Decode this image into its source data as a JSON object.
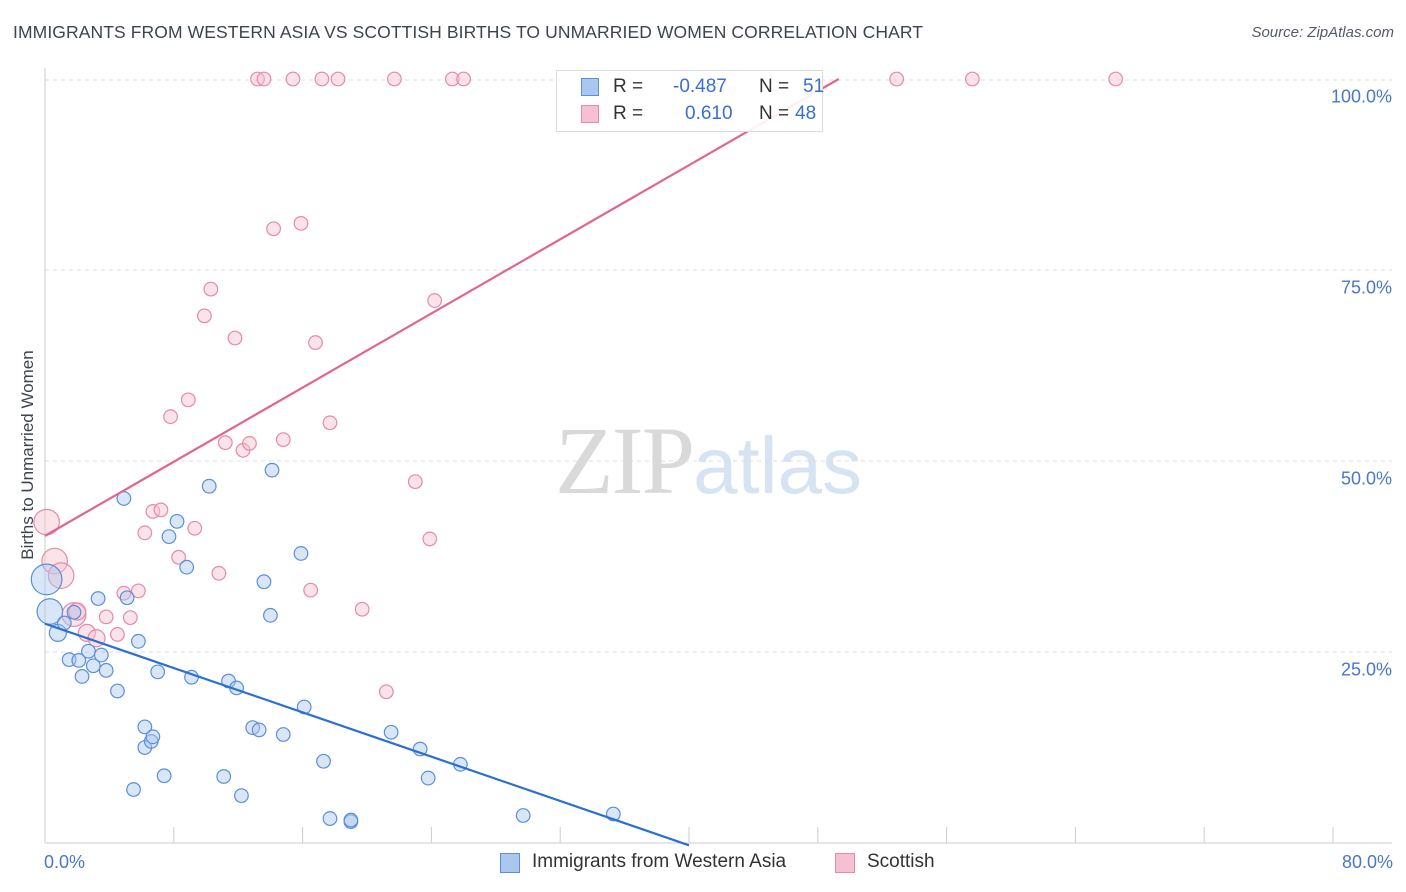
{
  "header": {
    "title": "IMMIGRANTS FROM WESTERN ASIA VS SCOTTISH BIRTHS TO UNMARRIED WOMEN CORRELATION CHART",
    "source": "Source: ZipAtlas.com"
  },
  "watermark": {
    "zip": "ZIP",
    "atlas": "atlas"
  },
  "legend": {
    "rows": [
      {
        "r_label": "R =",
        "r_value": "-0.487",
        "n_label": "N =",
        "n_value": "51"
      },
      {
        "r_label": "R =",
        "r_value": "0.610",
        "n_label": "N =",
        "n_value": "48"
      }
    ]
  },
  "bottom_legend": {
    "series1": "Immigrants from Western Asia",
    "series2": "Scottish"
  },
  "colors": {
    "blue_fill": "#aac7f0",
    "blue_stroke": "#5b8fd6",
    "blue_line": "#2b6fd0",
    "pink_fill": "#f6c0d1",
    "pink_stroke": "#e58aa8",
    "pink_line": "#e2658f",
    "tick_text": "#4a77c9"
  },
  "chart_data": {
    "type": "scatter",
    "title": "IMMIGRANTS FROM WESTERN ASIA VS SCOTTISH BIRTHS TO UNMARRIED WOMEN CORRELATION CHART",
    "xlabel": "",
    "ylabel": "Births to Unmarried Women",
    "xlim": [
      0,
      80
    ],
    "ylim": [
      0,
      100
    ],
    "x_tick_labels": [
      "0.0%",
      "80.0%"
    ],
    "y_tick_labels": [
      "100.0%",
      "75.0%",
      "50.0%",
      "25.0%"
    ],
    "y_tick_values": [
      100,
      75,
      50,
      25
    ],
    "grid": true,
    "series": [
      {
        "name": "Immigrants from Western Asia",
        "color": "blue",
        "r": -0.487,
        "n": 51,
        "trend": {
          "x0": 0,
          "y0": 28.7,
          "x1": 40,
          "y1": -0.3
        },
        "points": [
          [
            0.1,
            34.5,
            1.8
          ],
          [
            0.3,
            30.3,
            1.5
          ],
          [
            0.8,
            27.5,
            1.0
          ],
          [
            1.2,
            28.8,
            0.8
          ],
          [
            1.5,
            24.0,
            0.8
          ],
          [
            1.8,
            30.2,
            0.8
          ],
          [
            2.1,
            23.9,
            0.8
          ],
          [
            2.3,
            21.8,
            0.8
          ],
          [
            2.7,
            25.1,
            0.8
          ],
          [
            3.0,
            23.2,
            0.8
          ],
          [
            3.3,
            32.0,
            0.8
          ],
          [
            3.5,
            24.6,
            0.8
          ],
          [
            3.8,
            22.6,
            0.8
          ],
          [
            4.5,
            19.9,
            0.8
          ],
          [
            4.9,
            45.1,
            0.8
          ],
          [
            5.1,
            32.1,
            0.8
          ],
          [
            5.5,
            7.0,
            0.8
          ],
          [
            5.8,
            26.4,
            0.8
          ],
          [
            6.2,
            12.5,
            0.8
          ],
          [
            6.2,
            15.2,
            0.8
          ],
          [
            6.6,
            13.3,
            0.8
          ],
          [
            6.7,
            13.9,
            0.8
          ],
          [
            7.0,
            22.4,
            0.8
          ],
          [
            7.4,
            8.8,
            0.8
          ],
          [
            7.7,
            40.1,
            0.8
          ],
          [
            8.2,
            42.1,
            0.8
          ],
          [
            8.8,
            36.1,
            0.8
          ],
          [
            9.1,
            21.7,
            0.8
          ],
          [
            10.2,
            46.7,
            0.8
          ],
          [
            11.1,
            8.7,
            0.8
          ],
          [
            11.4,
            21.2,
            0.8
          ],
          [
            11.9,
            20.3,
            0.8
          ],
          [
            12.2,
            6.2,
            0.8
          ],
          [
            12.9,
            15.1,
            0.8
          ],
          [
            13.3,
            14.8,
            0.8
          ],
          [
            13.6,
            34.2,
            0.8
          ],
          [
            14.0,
            29.8,
            0.8
          ],
          [
            14.1,
            48.8,
            0.8
          ],
          [
            14.8,
            14.2,
            0.8
          ],
          [
            15.9,
            37.9,
            0.8
          ],
          [
            16.1,
            17.8,
            0.8
          ],
          [
            17.3,
            10.7,
            0.8
          ],
          [
            17.7,
            3.2,
            0.8
          ],
          [
            19.0,
            2.8,
            0.8
          ],
          [
            19.0,
            3.0,
            0.8
          ],
          [
            21.5,
            14.5,
            0.8
          ],
          [
            23.3,
            12.3,
            0.8
          ],
          [
            23.8,
            8.5,
            0.8
          ],
          [
            25.8,
            10.3,
            0.8
          ],
          [
            29.7,
            3.6,
            0.8
          ],
          [
            35.3,
            3.8,
            0.8
          ]
        ]
      },
      {
        "name": "Scottish",
        "color": "pink",
        "r": 0.61,
        "n": 48,
        "trend": {
          "x0": 0,
          "y0": 40.2,
          "x1": 49.3,
          "y1": 100
        },
        "points": [
          [
            0.1,
            42.0,
            1.5
          ],
          [
            0.6,
            36.9,
            1.5
          ],
          [
            1.0,
            35.0,
            1.5
          ],
          [
            1.8,
            29.9,
            1.4
          ],
          [
            2.0,
            30.3,
            1.0
          ],
          [
            2.6,
            27.5,
            1.0
          ],
          [
            3.2,
            26.8,
            1.0
          ],
          [
            3.8,
            29.6,
            0.8
          ],
          [
            4.5,
            27.3,
            0.8
          ],
          [
            4.9,
            32.7,
            0.8
          ],
          [
            5.3,
            29.5,
            0.8
          ],
          [
            5.8,
            33.0,
            0.8
          ],
          [
            6.2,
            40.6,
            0.8
          ],
          [
            6.7,
            43.4,
            0.8
          ],
          [
            7.2,
            43.6,
            0.8
          ],
          [
            7.8,
            55.8,
            0.8
          ],
          [
            8.3,
            37.4,
            0.8
          ],
          [
            8.9,
            58.0,
            0.8
          ],
          [
            9.3,
            41.2,
            0.8
          ],
          [
            9.9,
            69.0,
            0.8
          ],
          [
            10.3,
            72.5,
            0.8
          ],
          [
            10.8,
            35.3,
            0.8
          ],
          [
            11.2,
            52.4,
            0.8
          ],
          [
            11.8,
            66.1,
            0.8
          ],
          [
            12.3,
            51.4,
            0.8
          ],
          [
            12.7,
            52.3,
            0.8
          ],
          [
            13.2,
            100.0,
            0.8
          ],
          [
            13.6,
            100.0,
            0.8
          ],
          [
            14.2,
            80.4,
            0.8
          ],
          [
            14.8,
            52.8,
            0.8
          ],
          [
            15.4,
            100.0,
            0.8
          ],
          [
            15.9,
            81.1,
            0.8
          ],
          [
            16.5,
            33.1,
            0.8
          ],
          [
            16.8,
            65.5,
            0.8
          ],
          [
            17.2,
            100.0,
            0.8
          ],
          [
            17.7,
            55.0,
            0.8
          ],
          [
            18.2,
            100.0,
            0.8
          ],
          [
            19.7,
            30.6,
            0.8
          ],
          [
            21.2,
            19.8,
            0.8
          ],
          [
            21.7,
            100.0,
            0.8
          ],
          [
            23.0,
            47.3,
            0.8
          ],
          [
            23.9,
            39.8,
            0.8
          ],
          [
            24.2,
            71.0,
            0.8
          ],
          [
            25.3,
            100.0,
            0.8
          ],
          [
            26.0,
            100.0,
            0.8
          ],
          [
            52.9,
            100.0,
            0.8
          ],
          [
            57.6,
            100.0,
            0.8
          ],
          [
            66.5,
            100.0,
            0.8
          ]
        ]
      }
    ]
  }
}
